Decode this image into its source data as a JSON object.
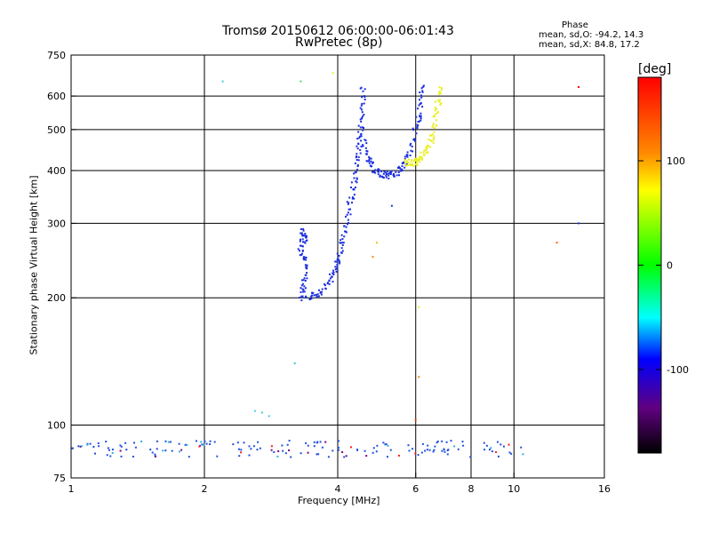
{
  "chart_data": {
    "type": "scatter",
    "title": "Tromsø 20150612 06:00:00-06:01:43",
    "subtitle": "RwPretec (8p)",
    "xlabel": "Frequency [MHz]",
    "ylabel": "Stationary phase Virtual Height [km]",
    "x_scale": "log2",
    "y_scale": "log",
    "xlim": [
      1,
      16
    ],
    "ylim": [
      75,
      750
    ],
    "x_ticks": [
      1,
      2,
      4,
      6,
      8,
      10,
      16
    ],
    "x_tick_labels": [
      "1",
      "2",
      "4",
      "6",
      "8",
      "10",
      "16"
    ],
    "y_ticks": [
      75,
      100,
      200,
      300,
      400,
      500,
      600,
      750
    ],
    "y_tick_labels": [
      "75",
      "100",
      "200",
      "300",
      "400",
      "500",
      "600",
      "750"
    ],
    "grid": true,
    "phase_info": {
      "heading": "Phase",
      "line_o": "mean, sd,O: -94.2, 14.3",
      "line_x": "mean, sd,X:  84.8, 17.2"
    },
    "colorbar": {
      "label": "[deg]",
      "range": [
        -180,
        180
      ],
      "ticks": [
        100,
        0,
        -100
      ],
      "tick_labels": [
        "100",
        "0",
        "-100"
      ],
      "colors": [
        "#ff0000",
        "#ff8800",
        "#ffff00",
        "#00ff00",
        "#00ffff",
        "#0000ff",
        "#800080",
        "#000000"
      ]
    },
    "series": [
      {
        "name": "O-mode trace",
        "color": "#1a2ee0",
        "segments": [
          [
            [
              3.3,
              200
            ],
            [
              3.35,
              215
            ],
            [
              3.4,
              240
            ],
            [
              3.3,
              260
            ],
            [
              3.35,
              290
            ],
            [
              3.4,
              270
            ]
          ],
          [
            [
              3.4,
              200
            ],
            [
              3.6,
              203
            ],
            [
              3.8,
              215
            ],
            [
              3.95,
              235
            ],
            [
              4.05,
              255
            ],
            [
              4.15,
              285
            ],
            [
              4.25,
              330
            ],
            [
              4.35,
              370
            ],
            [
              4.45,
              420
            ],
            [
              4.5,
              480
            ],
            [
              4.55,
              550
            ],
            [
              4.55,
              640
            ]
          ],
          [
            [
              4.55,
              480
            ],
            [
              4.65,
              430
            ],
            [
              4.8,
              405
            ],
            [
              5.0,
              392
            ],
            [
              5.2,
              390
            ],
            [
              5.4,
              395
            ],
            [
              5.6,
              410
            ],
            [
              5.8,
              440
            ],
            [
              6.0,
              500
            ],
            [
              6.15,
              560
            ],
            [
              6.25,
              640
            ]
          ]
        ]
      },
      {
        "name": "X-mode trace",
        "color": "#e8f020",
        "segments": [
          [
            [
              5.7,
              420
            ],
            [
              5.9,
              415
            ],
            [
              6.1,
              420
            ],
            [
              6.3,
              440
            ],
            [
              6.5,
              470
            ],
            [
              6.65,
              520
            ],
            [
              6.75,
              580
            ],
            [
              6.8,
              630
            ]
          ]
        ]
      },
      {
        "name": "E-region echoes",
        "color": "#2050e0",
        "x_range": [
          1.0,
          10.5
        ],
        "y_range": [
          84,
          92
        ]
      },
      {
        "name": "Sporadic echoes",
        "points": [
          {
            "x": 2.7,
            "y": 107,
            "color": "#40c8e0"
          },
          {
            "x": 2.6,
            "y": 108,
            "color": "#40c8e0"
          },
          {
            "x": 2.8,
            "y": 105,
            "color": "#40c8e0"
          },
          {
            "x": 3.2,
            "y": 140,
            "color": "#40c8e0"
          },
          {
            "x": 2.2,
            "y": 650,
            "color": "#40c8e0"
          },
          {
            "x": 3.3,
            "y": 650,
            "color": "#50d080"
          },
          {
            "x": 3.9,
            "y": 680,
            "color": "#e8f020"
          },
          {
            "x": 4.9,
            "y": 270,
            "color": "#e8c020"
          },
          {
            "x": 4.8,
            "y": 250,
            "color": "#ff8000"
          },
          {
            "x": 5.3,
            "y": 330,
            "color": "#1a2ee0"
          },
          {
            "x": 6.1,
            "y": 190,
            "color": "#e8f020"
          },
          {
            "x": 6.1,
            "y": 130,
            "color": "#ff8000"
          },
          {
            "x": 6.0,
            "y": 103,
            "color": "#ff4000"
          },
          {
            "x": 12.5,
            "y": 270,
            "color": "#ff6000"
          },
          {
            "x": 14.0,
            "y": 300,
            "color": "#1a2ee0"
          },
          {
            "x": 14.0,
            "y": 630,
            "color": "#ff0000"
          }
        ]
      }
    ]
  }
}
